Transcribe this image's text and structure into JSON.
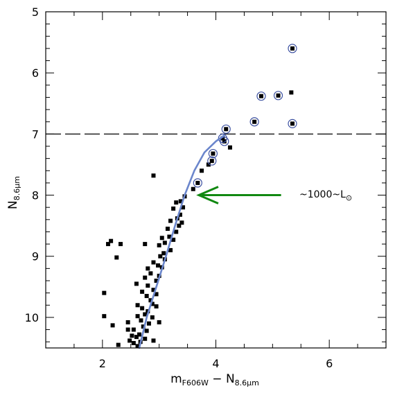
{
  "chart_data": {
    "type": "scatter",
    "xlabel": {
      "main": "m",
      "main_sub": "F606W",
      "sep": " − ",
      "second": "N",
      "second_sub": "8.6μm"
    },
    "ylabel": {
      "main": "N",
      "sub": "8.6μm"
    },
    "xlim": [
      1.0,
      7.0
    ],
    "ylim": [
      10.5,
      5.0
    ],
    "y_inverted": true,
    "x_ticks": [
      2,
      4,
      6
    ],
    "x_tick_labels": [
      "2",
      "4",
      "6"
    ],
    "y_ticks": [
      5,
      6,
      7,
      8,
      9,
      10
    ],
    "y_tick_labels": [
      "5",
      "6",
      "7",
      "8",
      "9",
      "10"
    ],
    "grid": false,
    "series": [
      {
        "marker": "square",
        "color": "#000000",
        "points": [
          [
            5.35,
            5.6
          ],
          [
            4.8,
            6.38
          ],
          [
            5.1,
            6.37
          ],
          [
            5.33,
            6.32
          ],
          [
            4.68,
            6.8
          ],
          [
            5.35,
            6.83
          ],
          [
            4.18,
            6.92
          ],
          [
            4.12,
            7.07
          ],
          [
            4.15,
            7.12
          ],
          [
            4.25,
            7.22
          ],
          [
            3.95,
            7.32
          ],
          [
            3.93,
            7.44
          ],
          [
            3.87,
            7.5
          ],
          [
            3.75,
            7.6
          ],
          [
            3.68,
            7.8
          ],
          [
            3.6,
            7.9
          ],
          [
            2.9,
            7.68
          ],
          [
            3.45,
            8.02
          ],
          [
            3.38,
            8.1
          ],
          [
            3.3,
            8.12
          ],
          [
            3.42,
            8.2
          ],
          [
            3.25,
            8.22
          ],
          [
            3.37,
            8.32
          ],
          [
            3.32,
            8.38
          ],
          [
            3.2,
            8.42
          ],
          [
            3.4,
            8.45
          ],
          [
            3.35,
            8.5
          ],
          [
            3.15,
            8.55
          ],
          [
            3.3,
            8.6
          ],
          [
            3.18,
            8.68
          ],
          [
            3.05,
            8.7
          ],
          [
            3.25,
            8.73
          ],
          [
            3.1,
            8.78
          ],
          [
            2.15,
            8.75
          ],
          [
            2.32,
            8.8
          ],
          [
            3.0,
            8.82
          ],
          [
            2.75,
            8.8
          ],
          [
            3.2,
            8.9
          ],
          [
            3.08,
            8.95
          ],
          [
            3.02,
            9.0
          ],
          [
            2.25,
            9.02
          ],
          [
            3.1,
            9.05
          ],
          [
            2.9,
            9.1
          ],
          [
            2.98,
            9.15
          ],
          [
            2.8,
            9.2
          ],
          [
            3.05,
            9.18
          ],
          [
            2.85,
            9.28
          ],
          [
            3.0,
            9.32
          ],
          [
            2.75,
            9.35
          ],
          [
            2.95,
            9.4
          ],
          [
            2.6,
            9.45
          ],
          [
            2.8,
            9.48
          ],
          [
            2.9,
            9.55
          ],
          [
            2.7,
            9.58
          ],
          [
            2.95,
            9.62
          ],
          [
            2.78,
            9.65
          ],
          [
            2.85,
            9.72
          ],
          [
            2.88,
            9.78
          ],
          [
            2.62,
            9.8
          ],
          [
            2.95,
            9.82
          ],
          [
            2.7,
            9.85
          ],
          [
            2.8,
            9.9
          ],
          [
            2.75,
            9.95
          ],
          [
            2.62,
            9.98
          ],
          [
            2.88,
            10.0
          ],
          [
            2.68,
            10.05
          ],
          [
            2.45,
            10.08
          ],
          [
            2.82,
            10.1
          ],
          [
            2.72,
            10.15
          ],
          [
            2.55,
            10.2
          ],
          [
            2.78,
            10.22
          ],
          [
            2.65,
            10.28
          ],
          [
            2.52,
            10.3
          ],
          [
            2.6,
            10.32
          ],
          [
            2.75,
            10.35
          ],
          [
            2.67,
            10.4
          ],
          [
            2.55,
            10.42
          ],
          [
            2.48,
            10.38
          ],
          [
            2.28,
            10.45
          ],
          [
            2.62,
            10.47
          ],
          [
            2.03,
            9.6
          ],
          [
            2.03,
            9.98
          ],
          [
            2.18,
            10.13
          ],
          [
            2.9,
            10.38
          ],
          [
            3.0,
            10.08
          ],
          [
            2.45,
            10.2
          ],
          [
            2.1,
            8.8
          ]
        ]
      },
      {
        "marker": "open-circle",
        "color": "#3a4fa0",
        "points": [
          [
            5.35,
            5.6
          ],
          [
            4.8,
            6.38
          ],
          [
            5.1,
            6.37
          ],
          [
            4.68,
            6.8
          ],
          [
            5.35,
            6.83
          ],
          [
            4.18,
            6.92
          ],
          [
            4.12,
            7.07
          ],
          [
            4.15,
            7.12
          ],
          [
            3.95,
            7.32
          ],
          [
            3.93,
            7.44
          ],
          [
            3.68,
            7.8
          ]
        ]
      },
      {
        "type": "line",
        "color": "#6b86cc",
        "points": [
          [
            2.65,
            10.5
          ],
          [
            2.78,
            10.0
          ],
          [
            2.95,
            9.5
          ],
          [
            3.12,
            9.0
          ],
          [
            3.28,
            8.5
          ],
          [
            3.45,
            8.0
          ],
          [
            3.62,
            7.6
          ],
          [
            3.8,
            7.3
          ],
          [
            4.0,
            7.12
          ],
          [
            4.15,
            7.02
          ]
        ]
      }
    ],
    "hline": {
      "y": 7.0,
      "style": "dashed",
      "color": "#000000"
    },
    "arrow": {
      "from": [
        5.15,
        8.0
      ],
      "to": [
        3.7,
        8.0
      ],
      "color": "#118811"
    },
    "annotation": {
      "text": "~1000~L",
      "symbol": "⊙"
    }
  }
}
